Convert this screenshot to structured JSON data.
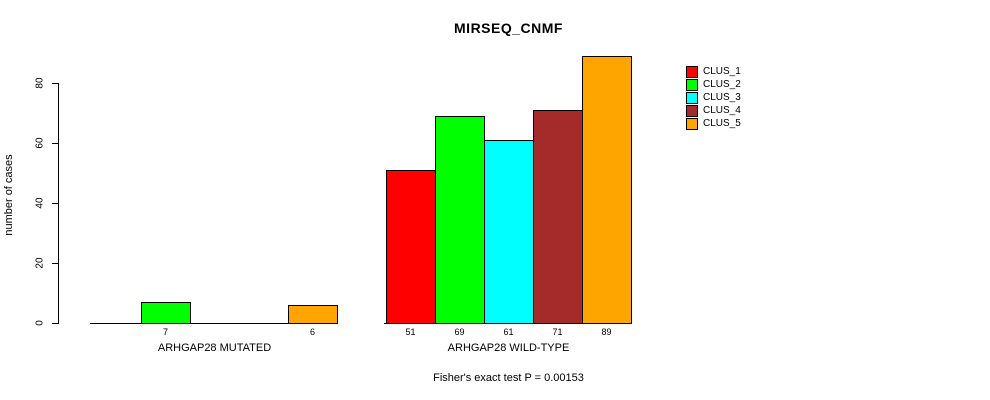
{
  "title": "MIRSEQ_CNMF",
  "y_axis": {
    "label": "number of cases",
    "ticks": [
      0,
      20,
      40,
      60,
      80
    ]
  },
  "footer": "Fisher's exact test P = 0.00153",
  "legend": [
    {
      "label": "CLUS_1",
      "color": "#FF0000"
    },
    {
      "label": "CLUS_2",
      "color": "#00FF00"
    },
    {
      "label": "CLUS_3",
      "color": "#00FFFF"
    },
    {
      "label": "CLUS_4",
      "color": "#A52A2A"
    },
    {
      "label": "CLUS_5",
      "color": "#FFA500"
    }
  ],
  "chart_data": {
    "type": "bar",
    "title": "MIRSEQ_CNMF",
    "xlabel": "",
    "ylabel": "number of cases",
    "ylim": [
      0,
      89
    ],
    "yticks": [
      0,
      20,
      40,
      60,
      80
    ],
    "grid": false,
    "legend_position": "right",
    "categories": [
      "ARHGAP28 MUTATED",
      "ARHGAP28 WILD-TYPE"
    ],
    "series": [
      {
        "name": "CLUS_1",
        "color": "#FF0000",
        "values": [
          0,
          51
        ]
      },
      {
        "name": "CLUS_2",
        "color": "#00FF00",
        "values": [
          7,
          69
        ]
      },
      {
        "name": "CLUS_3",
        "color": "#00FFFF",
        "values": [
          0,
          61
        ]
      },
      {
        "name": "CLUS_4",
        "color": "#A52A2A",
        "values": [
          0,
          71
        ]
      },
      {
        "name": "CLUS_5",
        "color": "#FFA500",
        "values": [
          6,
          89
        ]
      }
    ],
    "bar_value_labels": [
      [
        "",
        "7",
        "",
        "",
        "6"
      ],
      [
        "51",
        "69",
        "61",
        "71",
        "89"
      ]
    ],
    "annotation": "Fisher's exact test P = 0.00153"
  }
}
